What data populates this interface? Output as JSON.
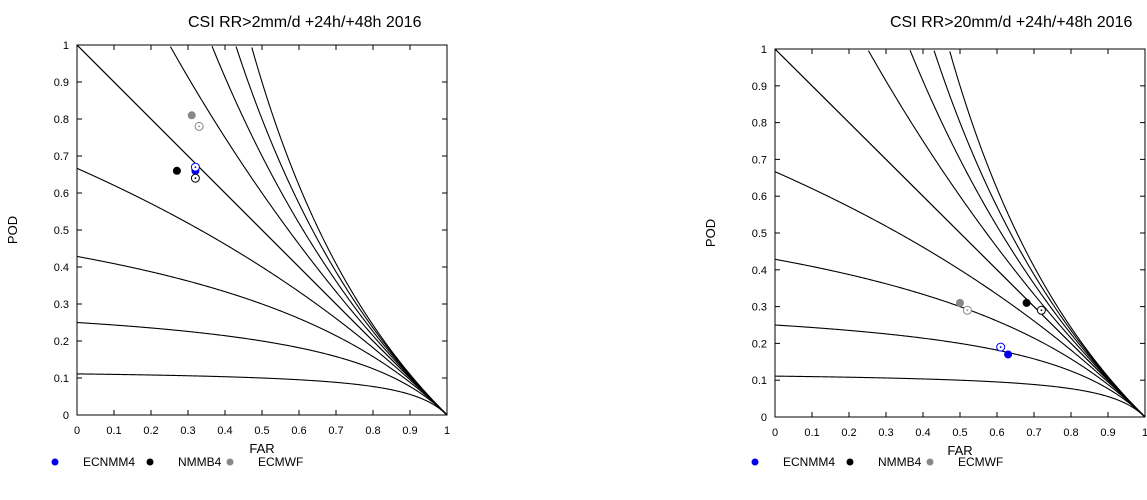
{
  "chart_data": [
    {
      "type": "scatter",
      "title": "CSI   RR>2mm/d   +24h/+48h   2016",
      "xlabel": "FAR",
      "ylabel": "POD",
      "xlim": [
        0,
        1
      ],
      "ylim": [
        0,
        1
      ],
      "ticks": [
        "0",
        "0.1",
        "0.2",
        "0.3",
        "0.4",
        "0.5",
        "0.6",
        "0.7",
        "0.8",
        "0.9",
        "1"
      ],
      "csi_isolines": [
        0.1,
        0.2,
        0.3,
        0.4,
        0.5,
        0.6,
        0.7,
        0.8,
        0.9
      ],
      "diagonal": "bias = 1",
      "legend_placement": "bottom",
      "series": [
        {
          "name": "ECNMM4",
          "color": "#0000ee",
          "points": [
            {
              "lead": "+24h",
              "far": 0.32,
              "pod": 0.66,
              "filled": true
            },
            {
              "lead": "+48h",
              "far": 0.32,
              "pod": 0.67,
              "filled": false
            }
          ]
        },
        {
          "name": "NMMB4",
          "color": "#000000",
          "points": [
            {
              "lead": "+24h",
              "far": 0.27,
              "pod": 0.66,
              "filled": true
            },
            {
              "lead": "+48h",
              "far": 0.32,
              "pod": 0.64,
              "filled": false
            }
          ]
        },
        {
          "name": "ECMWF",
          "color": "#888888",
          "points": [
            {
              "lead": "+24h",
              "far": 0.31,
              "pod": 0.81,
              "filled": true
            },
            {
              "lead": "+48h",
              "far": 0.33,
              "pod": 0.78,
              "filled": false
            }
          ]
        }
      ]
    },
    {
      "type": "scatter",
      "title": "CSI   RR>20mm/d   +24h/+48h   2016",
      "xlabel": "FAR",
      "ylabel": "POD",
      "xlim": [
        0,
        1
      ],
      "ylim": [
        0,
        1
      ],
      "ticks": [
        "0",
        "0.1",
        "0.2",
        "0.3",
        "0.4",
        "0.5",
        "0.6",
        "0.7",
        "0.8",
        "0.9",
        "1"
      ],
      "csi_isolines": [
        0.1,
        0.2,
        0.3,
        0.4,
        0.5,
        0.6,
        0.7,
        0.8,
        0.9
      ],
      "diagonal": "bias = 1",
      "legend_placement": "bottom",
      "series": [
        {
          "name": "ECNMM4",
          "color": "#0000ee",
          "points": [
            {
              "lead": "+24h",
              "far": 0.63,
              "pod": 0.17,
              "filled": true
            },
            {
              "lead": "+48h",
              "far": 0.61,
              "pod": 0.19,
              "filled": false
            }
          ]
        },
        {
          "name": "NMMB4",
          "color": "#000000",
          "points": [
            {
              "lead": "+24h",
              "far": 0.68,
              "pod": 0.31,
              "filled": true
            },
            {
              "lead": "+48h",
              "far": 0.72,
              "pod": 0.29,
              "filled": false
            }
          ]
        },
        {
          "name": "ECMWF",
          "color": "#888888",
          "points": [
            {
              "lead": "+24h",
              "far": 0.5,
              "pod": 0.31,
              "filled": true
            },
            {
              "lead": "+48h",
              "far": 0.52,
              "pod": 0.29,
              "filled": false
            }
          ]
        }
      ]
    }
  ]
}
